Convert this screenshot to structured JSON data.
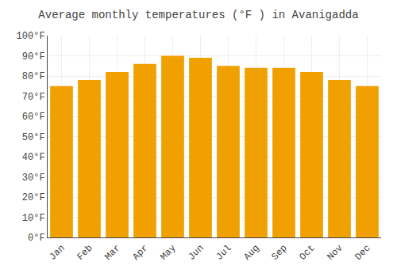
{
  "chart_data": {
    "type": "bar",
    "title": "Average monthly temperatures (°F ) in Avanigadda",
    "categories": [
      "Jan",
      "Feb",
      "Mar",
      "Apr",
      "May",
      "Jun",
      "Jul",
      "Aug",
      "Sep",
      "Oct",
      "Nov",
      "Dec"
    ],
    "values": [
      75,
      78,
      82,
      86,
      90,
      89,
      85,
      84,
      84,
      82,
      78,
      75
    ],
    "color": "#F0A000",
    "ylim": [
      0,
      100
    ],
    "yticks": [
      {
        "value": 0,
        "label": "0°F"
      },
      {
        "value": 10,
        "label": "10°F"
      },
      {
        "value": 20,
        "label": "20°F"
      },
      {
        "value": 30,
        "label": "30°F"
      },
      {
        "value": 40,
        "label": "40°F"
      },
      {
        "value": 50,
        "label": "50°F"
      },
      {
        "value": 60,
        "label": "60°F"
      },
      {
        "value": 70,
        "label": "70°F"
      },
      {
        "value": 80,
        "label": "80°F"
      },
      {
        "value": 90,
        "label": "90°F"
      },
      {
        "value": 100,
        "label": "100°F"
      }
    ],
    "grid": true
  }
}
